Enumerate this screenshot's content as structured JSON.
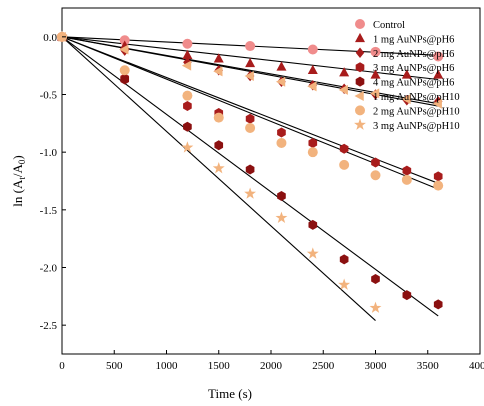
{
  "chart_data": {
    "type": "scatter",
    "title": "",
    "xlabel": "Time (s)",
    "ylabel_parts": [
      "ln (A",
      "t",
      "/A",
      "0",
      ")"
    ],
    "xlim": [
      0,
      4000
    ],
    "ylim": [
      -2.75,
      0.25
    ],
    "xticks": [
      0,
      500,
      1000,
      1500,
      2000,
      2500,
      3000,
      3500,
      4000
    ],
    "yticks": [
      0.0,
      -0.5,
      -1.0,
      -1.5,
      -2.0,
      -2.5
    ],
    "ytick_labels": [
      "0.0",
      "-0.5",
      "-1.0",
      "-1.5",
      "-2.0",
      "-2.5"
    ],
    "grid": false,
    "legend_position": "top-right",
    "series": [
      {
        "name": "Control",
        "marker": "circle",
        "color": "#f08c8c",
        "x": [
          0,
          600,
          1200,
          1800,
          2400,
          3000,
          3600
        ],
        "y": [
          0.0,
          -0.03,
          -0.06,
          -0.08,
          -0.11,
          -0.13,
          -0.17
        ],
        "fit_end": [
          3600,
          -0.16
        ]
      },
      {
        "name": "1 mg AuNPs@pH6",
        "marker": "triangle",
        "color": "#a81c1c",
        "x": [
          0,
          600,
          1200,
          1500,
          1800,
          2100,
          2400,
          2700,
          3000,
          3300,
          3600
        ],
        "y": [
          0.0,
          -0.08,
          -0.16,
          -0.19,
          -0.23,
          -0.26,
          -0.29,
          -0.31,
          -0.33,
          -0.33,
          -0.33
        ],
        "fit_end": [
          3600,
          -0.37
        ]
      },
      {
        "name": "2 mg AuNPs@pH6",
        "marker": "diamond",
        "color": "#a81c1c",
        "x": [
          0,
          600,
          1200,
          1500,
          1800,
          2100,
          2400,
          2700,
          3000,
          3300,
          3600
        ],
        "y": [
          0.0,
          -0.12,
          -0.22,
          -0.29,
          -0.34,
          -0.39,
          -0.42,
          -0.45,
          -0.5,
          -0.55,
          -0.56
        ],
        "fit_end": [
          3600,
          -0.6
        ]
      },
      {
        "name": "3 mg AuNPs@pH6",
        "marker": "hexagon",
        "color": "#a81c1c",
        "x": [
          0,
          600,
          1200,
          1500,
          1800,
          2100,
          2400,
          2700,
          3000,
          3300,
          3600
        ],
        "y": [
          0.0,
          -0.36,
          -0.6,
          -0.66,
          -0.71,
          -0.83,
          -0.92,
          -0.97,
          -1.09,
          -1.16,
          -1.21
        ],
        "fit_end": [
          3600,
          -1.27
        ]
      },
      {
        "name": "4 mg AuNPs@pH6",
        "marker": "hexagon",
        "color": "#8b1010",
        "x": [
          0,
          600,
          1200,
          1500,
          1800,
          2100,
          2400,
          2700,
          3000,
          3300,
          3600
        ],
        "y": [
          0.0,
          -0.37,
          -0.78,
          -0.94,
          -1.15,
          -1.38,
          -1.63,
          -1.93,
          -2.1,
          -2.24,
          -2.32
        ],
        "fit_end": [
          3600,
          -2.42
        ]
      },
      {
        "name": "1 mg AuNPs@pH10",
        "marker": "triangle-left",
        "color": "#f2b37e",
        "x": [
          0,
          600,
          1200,
          1500,
          1800,
          2100,
          2400,
          2700,
          3000,
          3300,
          3600
        ],
        "y": [
          0.0,
          -0.11,
          -0.25,
          -0.3,
          -0.34,
          -0.39,
          -0.43,
          -0.46,
          -0.49,
          -0.54,
          -0.58
        ],
        "fit_end": [
          3600,
          -0.58
        ]
      },
      {
        "name": "2 mg AuNPs@pH10",
        "marker": "circle",
        "color": "#f2b37e",
        "x": [
          0,
          600,
          1200,
          1500,
          1800,
          2100,
          2400,
          2700,
          3000,
          3300,
          3600
        ],
        "y": [
          0.0,
          -0.29,
          -0.51,
          -0.7,
          -0.79,
          -0.92,
          -1.0,
          -1.11,
          -1.2,
          -1.24,
          -1.29
        ],
        "fit_end": [
          3600,
          -1.32
        ]
      },
      {
        "name": "3 mg AuNPs@pH10",
        "marker": "star",
        "color": "#f2b37e",
        "x": [
          0,
          1200,
          1500,
          1800,
          2100,
          2400,
          2700,
          3000
        ],
        "y": [
          0.0,
          -0.96,
          -1.14,
          -1.36,
          -1.57,
          -1.88,
          -2.15,
          -2.35
        ],
        "fit_end": [
          3000,
          -2.46
        ]
      }
    ]
  }
}
